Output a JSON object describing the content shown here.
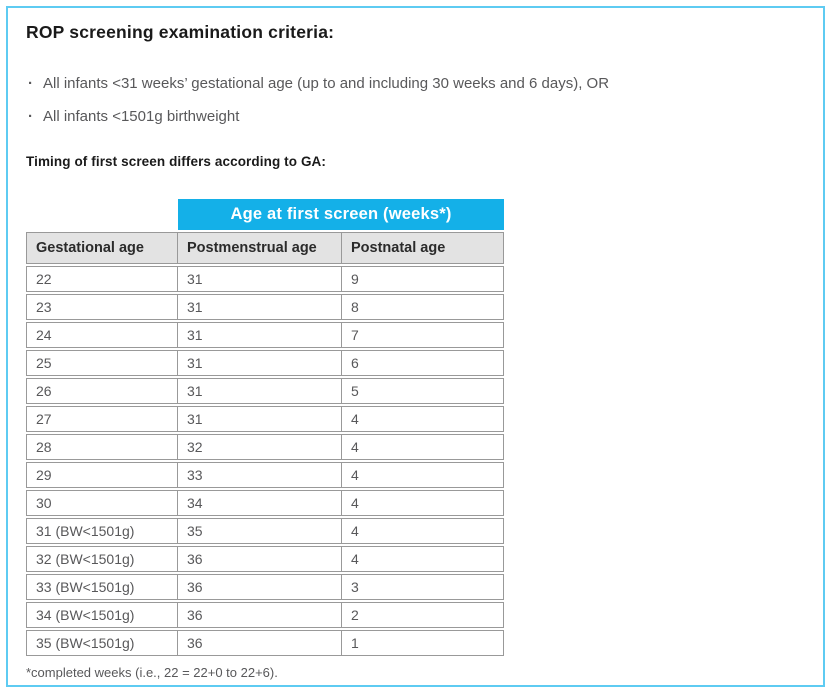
{
  "page": {
    "title": "ROP screening examination criteria:",
    "bullet_glyph": "·",
    "bullets": [
      "All infants <31 weeks’ gestational age (up to and including 30 weeks and 6 days), OR",
      "All infants <1501g birthweight"
    ],
    "subtitle": "Timing of first screen differs according to GA:",
    "footnote": "*completed weeks (i.e., 22 = 22+0 to 22+6)."
  },
  "table": {
    "banner": "Age at first screen (weeks*)",
    "columns": [
      "Gestational age",
      "Postmenstrual age",
      "Postnatal age"
    ],
    "rows": [
      [
        "22",
        "31",
        "9"
      ],
      [
        "23",
        "31",
        "8"
      ],
      [
        "24",
        "31",
        "7"
      ],
      [
        "25",
        "31",
        "6"
      ],
      [
        "26",
        "31",
        "5"
      ],
      [
        "27",
        "31",
        "4"
      ],
      [
        "28",
        "32",
        "4"
      ],
      [
        "29",
        "33",
        "4"
      ],
      [
        "30",
        "34",
        "4"
      ],
      [
        "31 (BW<1501g)",
        "35",
        "4"
      ],
      [
        "32 (BW<1501g)",
        "36",
        "4"
      ],
      [
        "33 (BW<1501g)",
        "36",
        "3"
      ],
      [
        "34 (BW<1501g)",
        "36",
        "2"
      ],
      [
        "35 (BW<1501g)",
        "36",
        "1"
      ]
    ]
  },
  "colors": {
    "banner_bg": "#14b0e8",
    "banner_text": "#ffffff",
    "header_bg": "#e3e3e3",
    "page_border": "#5ecbf2",
    "table_border": "#999999",
    "body_text": "#58585a",
    "heading_text": "#1a1a1a"
  }
}
